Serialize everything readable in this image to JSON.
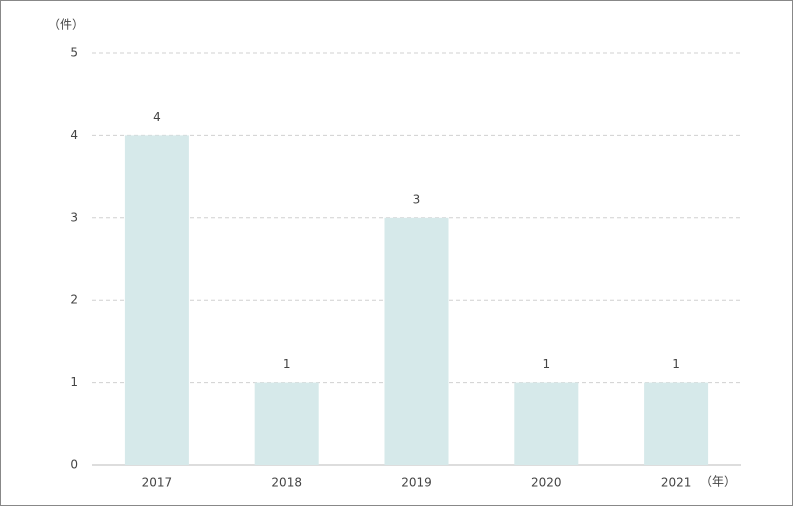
{
  "chart_data": {
    "type": "bar",
    "ylabel": "（件）",
    "xlabel": "（年）",
    "categories": [
      "2017",
      "2018",
      "2019",
      "2020",
      "2021"
    ],
    "values": [
      4,
      1,
      3,
      1,
      1
    ],
    "color": "#d6e9ea",
    "ylim": [
      0,
      5
    ],
    "yticks": [
      0,
      1,
      2,
      3,
      4,
      5
    ],
    "grid": true
  }
}
